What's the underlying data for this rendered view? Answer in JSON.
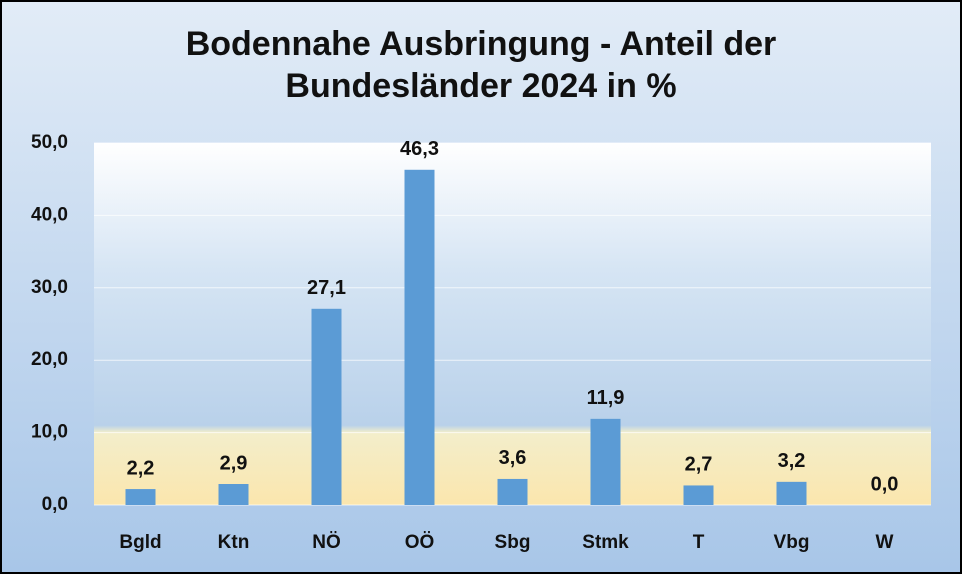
{
  "chart_data": {
    "type": "bar",
    "title": [
      "Bodennahe Ausbringung - Anteil der",
      "Bundesländer 2024 in %"
    ],
    "categories": [
      "Bgld",
      "Ktn",
      "NÖ",
      "OÖ",
      "Sbg",
      "Stmk",
      "T",
      "Vbg",
      "W"
    ],
    "values": [
      2.2,
      2.9,
      27.1,
      46.3,
      3.6,
      11.9,
      2.7,
      3.2,
      0.0
    ],
    "value_labels": [
      "2,2",
      "2,9",
      "27,1",
      "46,3",
      "3,6",
      "11,9",
      "2,7",
      "3,2",
      "0,0"
    ],
    "color": "#5b9bd5",
    "ylim": [
      0,
      50
    ],
    "yticks": [
      {
        "value": 0,
        "label": "0,0"
      },
      {
        "value": 10,
        "label": "10,0"
      },
      {
        "value": 20,
        "label": "20,0"
      },
      {
        "value": 30,
        "label": "30,0"
      },
      {
        "value": 40,
        "label": "40,0"
      },
      {
        "value": 50,
        "label": "50,0"
      }
    ],
    "grid": true
  }
}
